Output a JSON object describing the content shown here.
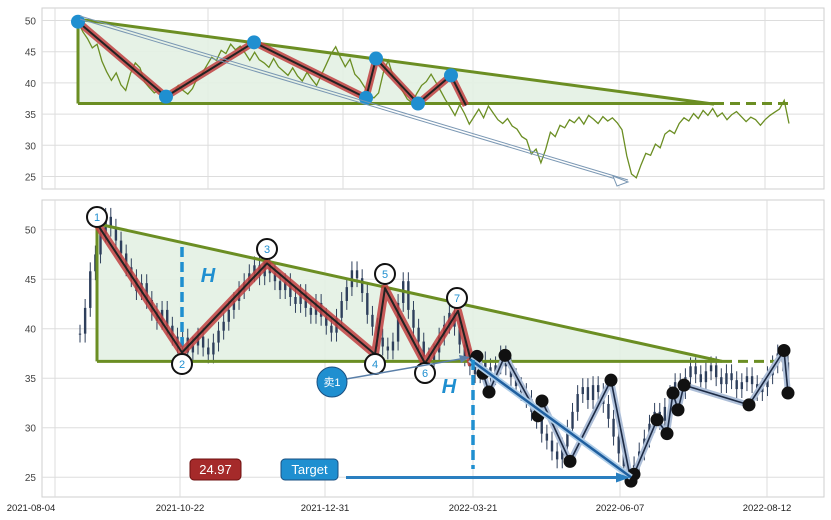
{
  "chart_data": [
    {
      "type": "line",
      "title": "",
      "xlabel": "",
      "ylabel": "",
      "ylim": [
        23,
        52
      ],
      "y_ticks": [
        25,
        30,
        35,
        40,
        45,
        50
      ],
      "grid": true,
      "colors": {
        "price": "#6b8e23",
        "pattern": "#8b1a1a",
        "pattern_glow": "#c04040",
        "triangle": "#6b8e23",
        "triangle_fill": "#e3f1e3",
        "point": "#1f8fd0",
        "arrow": "#7a97b3"
      },
      "series": [
        {
          "values": [
            49.8,
            48.2,
            47.1,
            45.6,
            46.2,
            43.5,
            41.8,
            40.4,
            41.6,
            39.7,
            38.8,
            41.5,
            43.2,
            42.4,
            40.1,
            39.2,
            38.4,
            38.9,
            37.6,
            37.9,
            38.4,
            39.6,
            38.8,
            38.2,
            39.1,
            40.8,
            41.5,
            42.8,
            44.1,
            43.6,
            45.2,
            44.7,
            46.2,
            45.3,
            45.9,
            44.8,
            43.6,
            44.9,
            43.7,
            43.2,
            42.5,
            43.9,
            42.6,
            41.9,
            41.2,
            42.4,
            41.1,
            40.3,
            41.7,
            40.6,
            39.6,
            41.3,
            42.9,
            44.6,
            45.8,
            44.1,
            42.6,
            43.8,
            41.4,
            40.6,
            39.4,
            38.1,
            37.6,
            38.4,
            41.7,
            43.6,
            41.2,
            40.3,
            38.7,
            37.4,
            36.8,
            38.3,
            39.6,
            40.2,
            41.4,
            40.1,
            38.7,
            37.3,
            36.1,
            34.8,
            36.5,
            35.1,
            33.4,
            34.6,
            35.8,
            34.4,
            36.3,
            35.2,
            34.1,
            33.5,
            34.3,
            33.1,
            32.6,
            31.4,
            30.9,
            28.6,
            29.4,
            27.2,
            29.3,
            32.1,
            31.4,
            33.2,
            32.8,
            34.1,
            33.6,
            34.5,
            33.4,
            34.8,
            34.2,
            33.5,
            34.6,
            33.9,
            34.4,
            33.6,
            32.5,
            28.3,
            25.4,
            24.8,
            26.9,
            28.7,
            28.4,
            30.2,
            29.6,
            31.8,
            32.4,
            31.9,
            33.5,
            34.4,
            33.9,
            35.1,
            34.3,
            35.6,
            34.8,
            35.9,
            34.6,
            35.2,
            34.1,
            34.9,
            35.4,
            34.6,
            33.8,
            34.5,
            34.1,
            33.2,
            34.1,
            34.8,
            35.3,
            35.8,
            37.2,
            33.5
          ]
        }
      ],
      "pattern_points": [
        {
          "label": "1",
          "y": 49.8
        },
        {
          "label": "2",
          "y": 37.8
        },
        {
          "label": "3",
          "y": 46.5
        },
        {
          "label": "4",
          "y": 37.6
        },
        {
          "label": "5",
          "y": 43.9
        },
        {
          "label": "6",
          "y": 36.7
        },
        {
          "label": "7",
          "y": 41.2
        }
      ],
      "triangle": {
        "upper_start": 50.2,
        "upper_end": 36.6,
        "base": 36.7
      }
    },
    {
      "type": "candlestick",
      "title": "",
      "xlabel": "",
      "ylabel": "",
      "ylim": [
        23,
        53
      ],
      "y_ticks": [
        25,
        30,
        35,
        40,
        45,
        50
      ],
      "x_ticks": [
        "2021-08-04",
        "2021-10-22",
        "2021-12-31",
        "2022-03-21",
        "2022-06-07",
        "2022-08-12"
      ],
      "grid": true,
      "colors": {
        "candle": "#2e3f5c",
        "pattern": "#8b1a1a",
        "pattern_glow": "#c04040",
        "triangle": "#6b8e23",
        "triangle_fill": "#e3f1e3",
        "measure": "#1f8fd0",
        "forecast": "#1f5f9f",
        "dots": "#111111",
        "price_box": "#a52a2a",
        "target_box": "#1f8fd0"
      },
      "series": [
        {
          "values": [
            39.5,
            42.1,
            45.8,
            47.5,
            49.6,
            51.3,
            50.2,
            48.9,
            47.6,
            46.2,
            45.1,
            43.8,
            44.6,
            42.9,
            41.7,
            40.8,
            41.9,
            40.3,
            39.2,
            38.4,
            39.1,
            37.6,
            38.3,
            39.2,
            38.1,
            37.4,
            38.6,
            39.8,
            40.7,
            41.9,
            42.8,
            43.9,
            44.7,
            45.6,
            46.4,
            45.3,
            46.9,
            45.6,
            44.8,
            43.9,
            44.7,
            43.2,
            42.5,
            43.6,
            42.1,
            41.4,
            42.6,
            41.2,
            40.3,
            39.6,
            41.1,
            42.8,
            44.2,
            45.9,
            45.1,
            43.6,
            41.4,
            40.2,
            39.1,
            38.2,
            37.8,
            38.7,
            42.6,
            44.8,
            41.9,
            40.1,
            38.7,
            37.2,
            36.4,
            37.6,
            39.2,
            40.4,
            41.6,
            40.2,
            38.4,
            37.1,
            36.2,
            35.4,
            36.8,
            36.1,
            35.2,
            36.3,
            37.4,
            36.2,
            35.1,
            34.2,
            33.6,
            32.9,
            31.6,
            30.8,
            29.4,
            28.7,
            27.6,
            26.8,
            28.1,
            29.9,
            31.6,
            33.4,
            34.1,
            32.8,
            34.3,
            33.6,
            32.4,
            30.9,
            29.1,
            27.4,
            26.1,
            25.3,
            26.2,
            27.6,
            28.9,
            30.4,
            31.6,
            30.7,
            32.1,
            33.4,
            34.6,
            33.8,
            35.1,
            36.2,
            35.4,
            34.6,
            35.7,
            36.3,
            35.1,
            34.4,
            35.5,
            34.8,
            33.9,
            34.6,
            35.2,
            34.4,
            33.6,
            34.1,
            35.3,
            36.4,
            37.5,
            36.6,
            33.8
          ]
        }
      ],
      "pattern_points": [
        {
          "label": "1",
          "y": 50.6
        },
        {
          "label": "2",
          "y": 37.6
        },
        {
          "label": "3",
          "y": 46.6
        },
        {
          "label": "4",
          "y": 37.4
        },
        {
          "label": "5",
          "y": 44.1
        },
        {
          "label": "6",
          "y": 36.5
        },
        {
          "label": "7",
          "y": 41.8
        }
      ],
      "triangle": {
        "upper_start": 50.6,
        "upper_end": 36.7,
        "base": 36.7
      },
      "measure_label": "H",
      "breakout_label": "卖1",
      "current_price": "24.97",
      "target_label": "Target",
      "target_price": 24.97,
      "forecast_path": [
        36.9,
        25.0
      ],
      "dots": [
        37.2,
        35.5,
        33.6,
        37.3,
        31.2,
        32.7,
        26.6,
        34.8,
        24.6,
        25.3,
        30.8,
        29.4,
        33.5,
        31.8,
        34.3,
        32.3,
        37.8,
        33.5
      ]
    }
  ]
}
